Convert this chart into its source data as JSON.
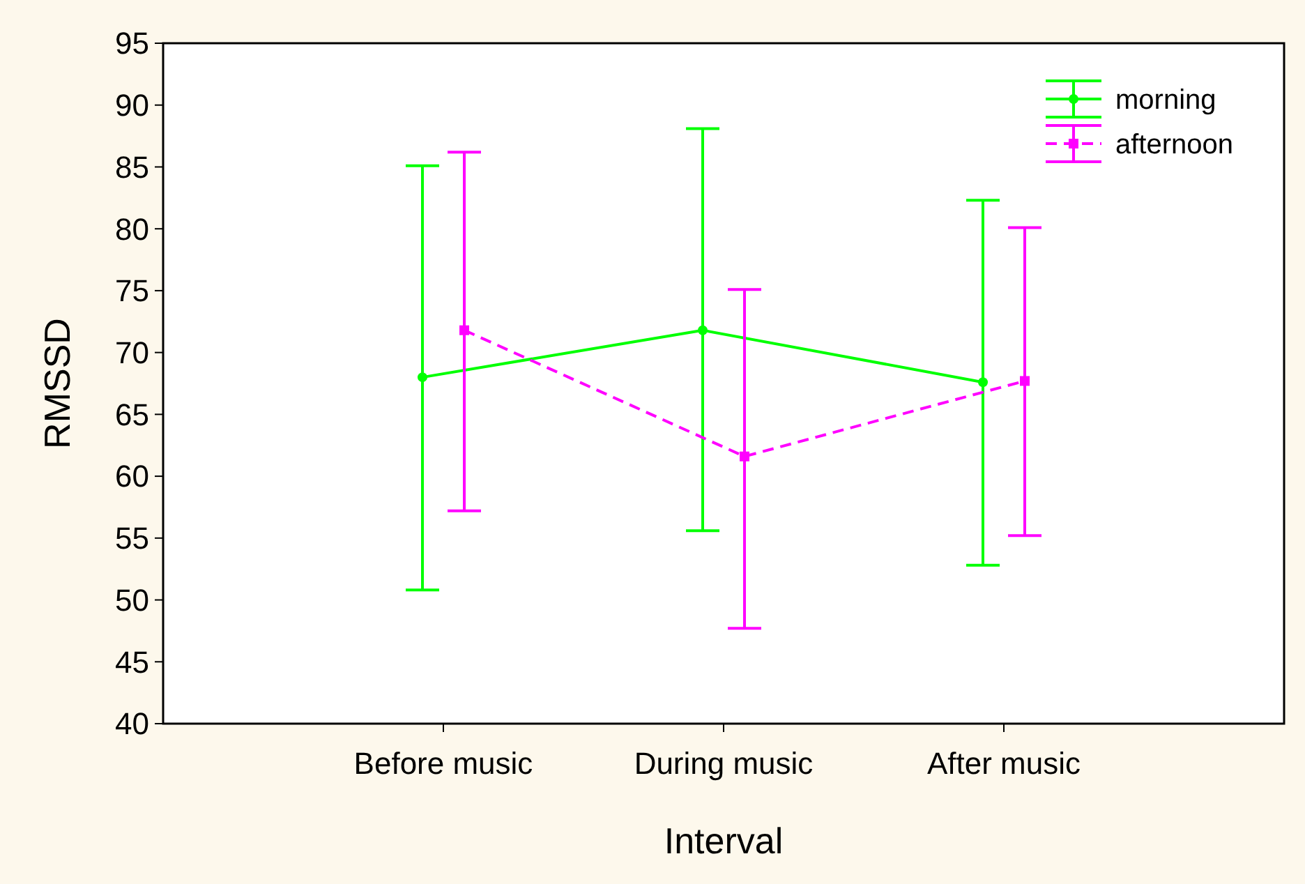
{
  "chart_data": {
    "type": "line",
    "xlabel": "Interval",
    "ylabel": "RMSSD",
    "categories": [
      "Before music",
      "During music",
      "After music"
    ],
    "series": [
      {
        "name": "morning",
        "color": "#00ff00",
        "marker": "circle",
        "line_style": "solid",
        "values": [
          68,
          71.8,
          67.6
        ],
        "errors": [
          [
            50.8,
            85.1
          ],
          [
            55.6,
            88.1
          ],
          [
            52.8,
            82.3
          ]
        ]
      },
      {
        "name": "afternoon",
        "color": "#ff00ff",
        "marker": "square",
        "line_style": "dashed",
        "values": [
          71.8,
          61.6,
          67.7
        ],
        "errors": [
          [
            57.2,
            86.2
          ],
          [
            47.7,
            75.1
          ],
          [
            55.2,
            80.1
          ]
        ]
      }
    ],
    "ylim": [
      40,
      95
    ],
    "yticks": [
      40,
      45,
      50,
      55,
      60,
      65,
      70,
      75,
      80,
      85,
      90,
      95
    ],
    "grid": false,
    "legend": "top right"
  }
}
